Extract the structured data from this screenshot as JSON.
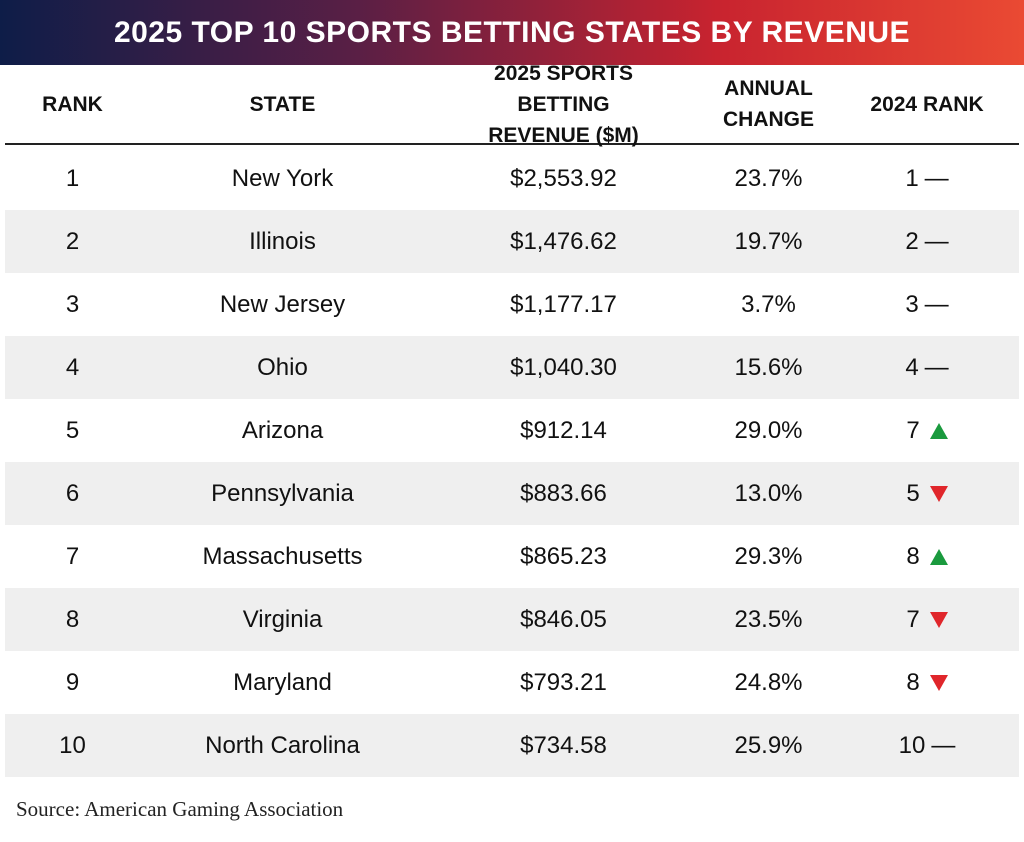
{
  "header": {
    "title": "2025 TOP 10 SPORTS BETTING STATES BY REVENUE"
  },
  "table": {
    "columns": [
      "RANK",
      "STATE",
      "2025 SPORTS BETTING REVENUE ($M)",
      "ANNUAL CHANGE",
      "2024 RANK"
    ],
    "rows": [
      [
        "1",
        "New York",
        "$2,553.92",
        "23.7%",
        {
          "rank": "1",
          "mark": "—"
        }
      ],
      [
        "2",
        "Illinois",
        "$1,476.62",
        "19.7%",
        {
          "rank": "2",
          "mark": "—"
        }
      ],
      [
        "3",
        "New Jersey",
        "$1,177.17",
        "3.7%",
        {
          "rank": "3",
          "mark": "—"
        }
      ],
      [
        "4",
        "Ohio",
        "$1,040.30",
        "15.6%",
        {
          "rank": "4",
          "mark": "—"
        }
      ],
      [
        "5",
        "Arizona",
        "$912.14",
        "29.0%",
        {
          "rank": "7",
          "trend": "up"
        }
      ],
      [
        "6",
        "Pennsylvania",
        "$883.66",
        "13.0%",
        {
          "rank": "5",
          "trend": "down"
        }
      ],
      [
        "7",
        "Massachusetts",
        "$865.23",
        "29.3%",
        {
          "rank": "8",
          "trend": "up"
        }
      ],
      [
        "8",
        "Virginia",
        "$846.05",
        "23.5%",
        {
          "rank": "7",
          "trend": "down"
        }
      ],
      [
        "9",
        "Maryland",
        "$793.21",
        "24.8%",
        {
          "rank": "8",
          "trend": "down"
        }
      ],
      [
        "10",
        "North Carolina",
        "$734.58",
        "25.9%",
        {
          "rank": "10",
          "mark": "—"
        }
      ]
    ]
  },
  "footer": {
    "source": "Source: American Gaming Association"
  }
}
